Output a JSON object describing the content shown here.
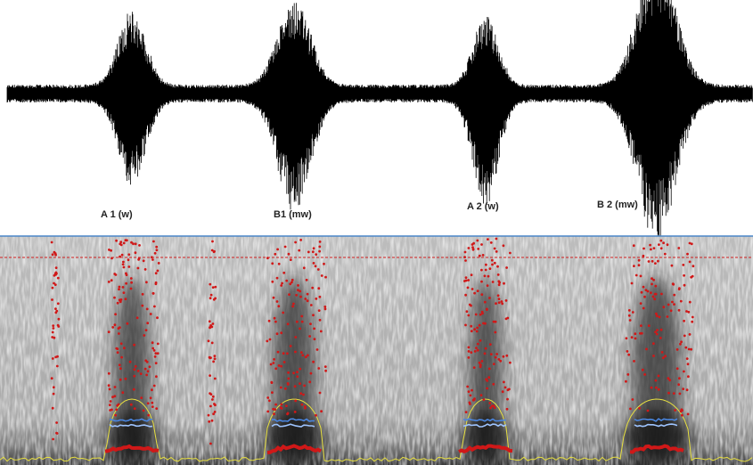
{
  "labels": [
    "A 1 (w)",
    "B1 (mw)",
    "A 2 (w)",
    "B 2 (mw)"
  ]
}
